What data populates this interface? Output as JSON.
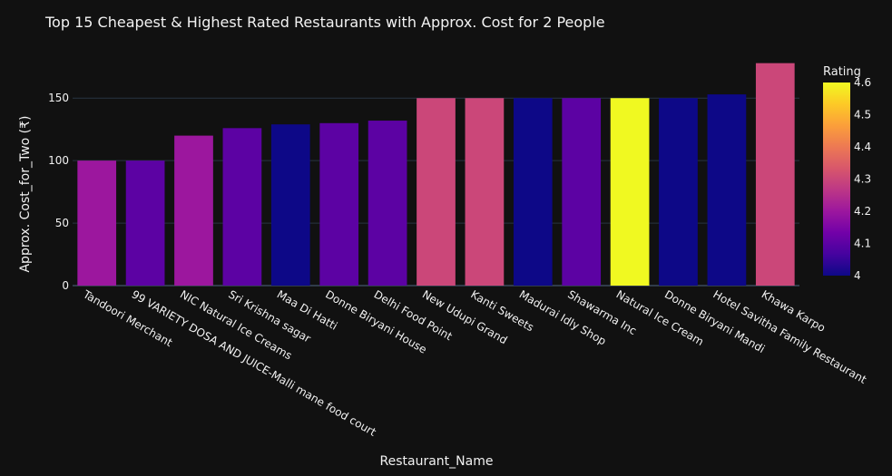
{
  "chart_data": {
    "type": "bar",
    "title": "Top 15 Cheapest & Highest Rated Restaurants with Approx. Cost for 2 People",
    "xlabel": "Restaurant_Name",
    "ylabel": "Approx. Cost_for_Two (₹)",
    "ylim": [
      0,
      185
    ],
    "yticks": [
      0,
      50,
      100,
      150
    ],
    "grid": true,
    "categories": [
      "Tandoori Merchant",
      "99 VARIETY DOSA AND JUICE-Malli mane food court",
      "NIC Natural Ice Creams",
      "Sri Krishna sagar",
      "Maa Di Hatti",
      "Donne Biryani House",
      "Delhi Food Point",
      "New Udupi Grand",
      "Kanti Sweets",
      "Madurai Idly Shop",
      "Shawarma Inc",
      "Natural Ice Cream",
      "Donne Biryani Mandi",
      "Hotel Savitha Family Restaurant",
      "Khawa Karpo"
    ],
    "values": [
      100,
      100,
      120,
      126,
      129,
      130,
      132,
      150,
      150,
      150,
      150,
      150,
      150,
      153,
      178
    ],
    "ratings": [
      4.2,
      4.1,
      4.2,
      4.1,
      4.0,
      4.1,
      4.1,
      4.3,
      4.3,
      4.0,
      4.1,
      4.6,
      4.0,
      4.0,
      4.3
    ],
    "colorbar": {
      "title": "Rating",
      "range": [
        4.0,
        4.6
      ],
      "ticks": [
        "4",
        "4.1",
        "4.2",
        "4.3",
        "4.4",
        "4.5",
        "4.6"
      ],
      "colorscale": [
        "#0d0887",
        "#46039f",
        "#7201a8",
        "#9c179e",
        "#bd3786",
        "#d8576b",
        "#ed7953",
        "#fb9f3a",
        "#fdca26",
        "#f0f921"
      ]
    },
    "colors": {
      "background": "#111111",
      "text": "#f2f2f2",
      "grid": "#283442"
    }
  }
}
